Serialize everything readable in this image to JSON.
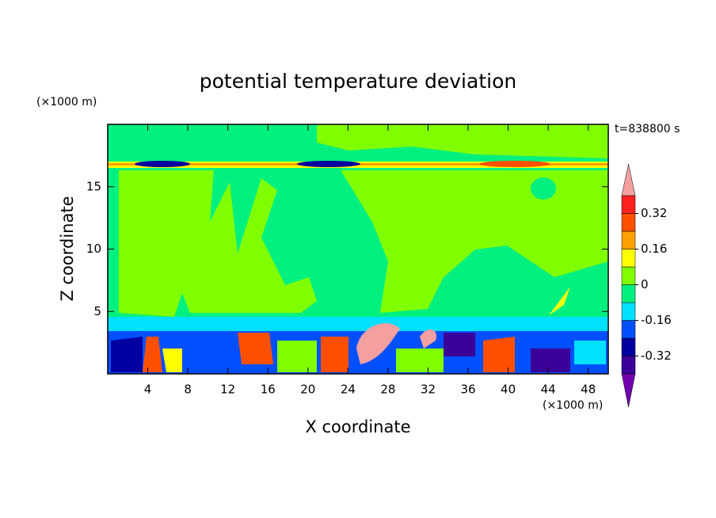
{
  "chart_data": {
    "type": "contour",
    "title": "potential temperature deviation",
    "x_label": "X coordinate",
    "y_label": "Z coordinate",
    "x_unit": "(×1000 m)",
    "y_unit": "(×1000 m)",
    "time_label": "t=838800 s",
    "xlim": [
      0,
      50
    ],
    "ylim": [
      0,
      20
    ],
    "xticks": [
      4,
      8,
      12,
      16,
      20,
      24,
      28,
      32,
      36,
      40,
      44,
      48
    ],
    "yticks": [
      5,
      10,
      15
    ],
    "colorbar": {
      "levels": [
        -0.4,
        -0.32,
        -0.24,
        -0.16,
        -0.08,
        0,
        0.08,
        0.16,
        0.24,
        0.32,
        0.4
      ],
      "colors": [
        "#7000b0",
        "#3a0099",
        "#0000a0",
        "#0050ff",
        "#00e0ff",
        "#00f080",
        "#80ff00",
        "#ffff00",
        "#ffa000",
        "#ff5000",
        "#ff2020",
        "#f5a0a0"
      ],
      "ticks": [
        0.32,
        0.16,
        0,
        -0.16,
        -0.32
      ]
    }
  }
}
